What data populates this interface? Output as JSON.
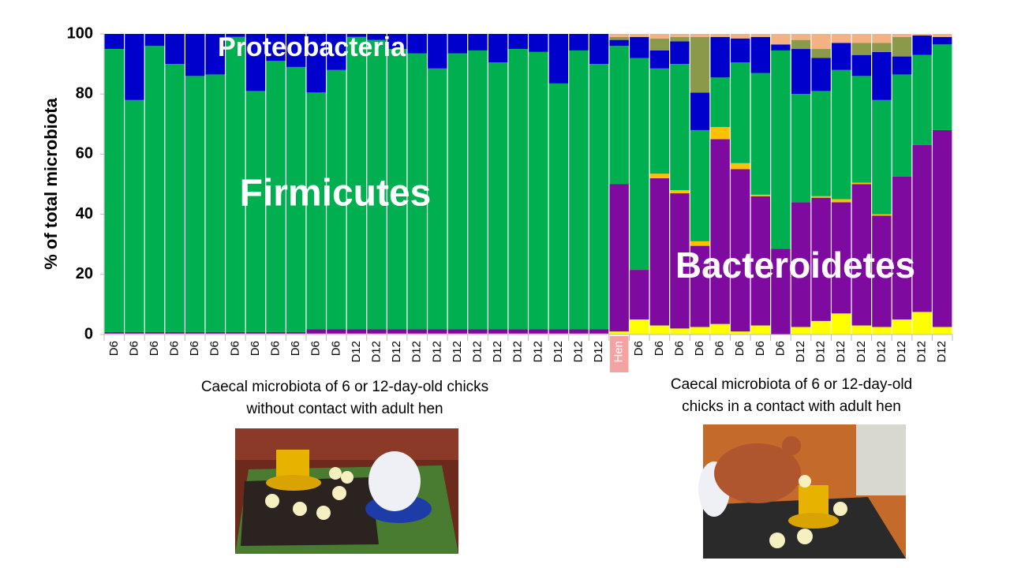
{
  "chart_data": {
    "type": "stacked_bar",
    "ylabel": "% of total microbiota",
    "categories": [
      "D6",
      "D6",
      "D6",
      "D6",
      "D6",
      "D6",
      "D6",
      "D6",
      "D6",
      "D6",
      "D6",
      "D6",
      "D12",
      "D12",
      "D12",
      "D12",
      "D12",
      "D12",
      "D12",
      "D12",
      "D12",
      "D12",
      "D12",
      "D12",
      "D12",
      "Hen",
      "D6",
      "D6",
      "D6",
      "D6",
      "D6",
      "D6",
      "D6",
      "D6",
      "D12",
      "D12",
      "D12",
      "D12",
      "D12",
      "D12",
      "D12",
      "D12"
    ],
    "highlight": {
      "index": 25,
      "color": "#f4a3a3"
    },
    "series": [
      {
        "name": null,
        "color": "#ffff00",
        "values": [
          0.3,
          0.3,
          0.3,
          0.3,
          0.3,
          0.3,
          0.3,
          0.3,
          0.3,
          0.3,
          0.3,
          0.3,
          0.3,
          0.3,
          0.3,
          0.3,
          0.3,
          0.3,
          0.3,
          0.3,
          0.3,
          0.3,
          0.3,
          0.3,
          0.3,
          1,
          5,
          3,
          2,
          2.5,
          3.5,
          1,
          3,
          0,
          2.5,
          4.5,
          7,
          3,
          2.5,
          5,
          7.5,
          2.5
        ]
      },
      {
        "name": "Bacteroidetes",
        "color": "#7f0aa0",
        "values": [
          0.5,
          0.5,
          0.5,
          0.5,
          0.5,
          0.5,
          0.5,
          0.5,
          0.5,
          0.5,
          1.5,
          1.5,
          1.5,
          1.5,
          1.5,
          1.5,
          1.5,
          1.5,
          1.5,
          1.5,
          1.5,
          1.5,
          1.5,
          1.5,
          1.5,
          49,
          16.5,
          49,
          45,
          27,
          61.5,
          54,
          43,
          28.5,
          41.5,
          41,
          37,
          47,
          37,
          47.5,
          55.5,
          65.5
        ]
      },
      {
        "name": null,
        "color": "#ffc000",
        "values": [
          0,
          0,
          0,
          0,
          0,
          0,
          0,
          0,
          0,
          0,
          0,
          0,
          0,
          0,
          0,
          0,
          0,
          0,
          0,
          0,
          0,
          0,
          0,
          0,
          0,
          0,
          0,
          1.5,
          1,
          1.5,
          4,
          2,
          0.5,
          0,
          0,
          0.5,
          1,
          0.5,
          0.5,
          0,
          0,
          0
        ]
      },
      {
        "name": "Firmicutes",
        "color": "#00b050",
        "values": [
          94.2,
          77.2,
          95.2,
          89.2,
          85.2,
          85.7,
          98.2,
          80.2,
          90.2,
          88.2,
          78.7,
          86.2,
          97.2,
          96.2,
          93.2,
          91.7,
          86.7,
          91.7,
          92.7,
          88.7,
          93.2,
          92.2,
          81.7,
          92.7,
          88.2,
          46,
          70.5,
          35,
          42,
          37,
          16.5,
          33.5,
          40.5,
          66,
          36,
          35,
          43,
          35.5,
          38,
          34,
          30,
          28.5
        ]
      },
      {
        "name": "Proteobacteria",
        "color": "#0000cc",
        "values": [
          5,
          22,
          4,
          10,
          14,
          13.5,
          1,
          19,
          9,
          11,
          19.5,
          12,
          1,
          2,
          5,
          6.5,
          11.5,
          6.5,
          5.5,
          9.5,
          5,
          6,
          16.5,
          5.5,
          10,
          2,
          7,
          6,
          7.5,
          12.5,
          13.5,
          8,
          12,
          2,
          15,
          11,
          9,
          7,
          16,
          6,
          6.5,
          2.5
        ]
      },
      {
        "name": null,
        "color": "#8a9a4a",
        "values": [
          0,
          0,
          0,
          0,
          0,
          0,
          0,
          0,
          0,
          0,
          0,
          0,
          0,
          0,
          0,
          0,
          0,
          0,
          0,
          0,
          0,
          0,
          0,
          0,
          0,
          1,
          0,
          4,
          1.5,
          18.5,
          0,
          0,
          0,
          0,
          3,
          3,
          0,
          4,
          3,
          6.5,
          0,
          0
        ]
      },
      {
        "name": null,
        "color": "#f4b183",
        "values": [
          0,
          0,
          0,
          0,
          0,
          0,
          0,
          0,
          0,
          0,
          0,
          0,
          0,
          0,
          0,
          0,
          0,
          0,
          0,
          0,
          0,
          0,
          0,
          0,
          0,
          1,
          1,
          1.5,
          1,
          1,
          1,
          1.5,
          1,
          3.5,
          2,
          5,
          3,
          3,
          3,
          1,
          0.5,
          1
        ]
      }
    ],
    "ylim": [
      0,
      100
    ],
    "yticks": [
      0,
      20,
      40,
      60,
      80,
      100
    ],
    "grid": false,
    "annotations": [
      {
        "text": "Proteobacteria"
      },
      {
        "text": "Firmicutes"
      },
      {
        "text": "Bacteroidetes"
      }
    ]
  },
  "captions": [
    {
      "lines": [
        "Caecal microbiota of 6 or 12-day-old chicks",
        "without contact with adult hen"
      ]
    },
    {
      "lines": [
        "Caecal microbiota of 6 or 12-day-old",
        "chicks in a contact with adult hen"
      ]
    }
  ]
}
